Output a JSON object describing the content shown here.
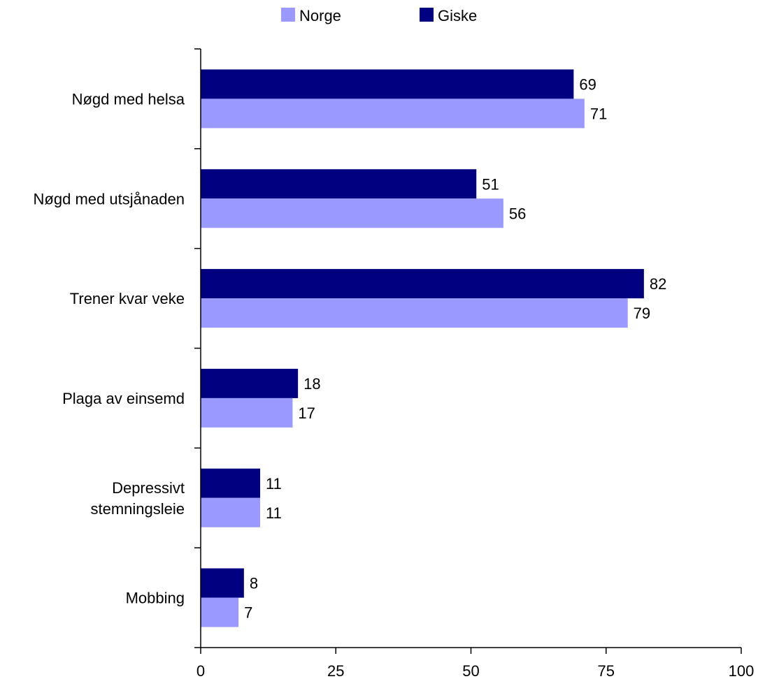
{
  "chart_data": {
    "type": "bar",
    "orientation": "horizontal",
    "categories": [
      [
        "Nøgd med helsa"
      ],
      [
        "Nøgd med utsjånaden"
      ],
      [
        "Trener kvar veke"
      ],
      [
        "Plaga av einsemd"
      ],
      [
        "Depressivt",
        "stemningsleie"
      ],
      [
        "Mobbing"
      ]
    ],
    "series": [
      {
        "name": "Giske",
        "color": "#000080",
        "values": [
          69,
          51,
          82,
          18,
          11,
          8
        ],
        "labels": [
          "69",
          "51",
          "82",
          "18",
          "11",
          "8"
        ]
      },
      {
        "name": "Norge",
        "color": "#9999ff",
        "values": [
          71,
          56,
          79,
          17,
          11,
          7
        ],
        "labels": [
          "71",
          "56",
          "79",
          "17",
          "11",
          "7"
        ]
      }
    ],
    "legend_order": [
      "Norge",
      "Giske"
    ],
    "legend_position": "top",
    "xlim": [
      0,
      100
    ],
    "xticks": [
      0,
      25,
      50,
      75,
      100
    ],
    "xtick_labels": [
      "0",
      "25",
      "50",
      "75",
      "100"
    ],
    "grid": false,
    "title": "",
    "xlabel": "",
    "ylabel": ""
  }
}
